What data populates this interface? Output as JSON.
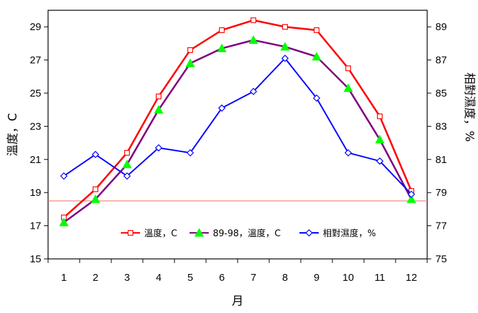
{
  "chart_data": {
    "type": "line",
    "categories": [
      "1",
      "2",
      "3",
      "4",
      "5",
      "6",
      "7",
      "8",
      "9",
      "10",
      "11",
      "12"
    ],
    "x": [
      1,
      2,
      3,
      4,
      5,
      6,
      7,
      8,
      9,
      10,
      11,
      12
    ],
    "xlabel": "月",
    "ylabel_left": "溫度，C",
    "ylabel_right": "相對濕度，%",
    "ylim_left": [
      15,
      30
    ],
    "ylim_right": [
      75,
      90
    ],
    "yticks_left": [
      15,
      17,
      19,
      21,
      23,
      25,
      27,
      29
    ],
    "yticks_right": [
      75,
      77,
      79,
      81,
      83,
      85,
      87,
      89
    ],
    "grid": false,
    "legend_position": "bottom-center",
    "reference_line": {
      "axis": "left",
      "value": 18.5,
      "color": "#f08070"
    },
    "series": [
      {
        "name": "溫度，C",
        "axis": "left",
        "color": "#ff0000",
        "marker": "square",
        "values": [
          17.5,
          19.2,
          21.4,
          24.8,
          27.6,
          28.8,
          29.4,
          29.0,
          28.8,
          26.5,
          23.6,
          19.1
        ]
      },
      {
        "name": "89-98，溫度，C",
        "axis": "left",
        "color": "#800080",
        "marker": "triangle",
        "marker_color": "#00ff00",
        "values": [
          17.2,
          18.6,
          20.7,
          24.0,
          26.8,
          27.7,
          28.2,
          27.8,
          27.2,
          25.3,
          22.2,
          18.6
        ]
      },
      {
        "name": "相對濕度，%",
        "axis": "right",
        "color": "#0000ff",
        "marker": "diamond",
        "values": [
          80.0,
          81.3,
          80.0,
          81.7,
          81.4,
          84.1,
          85.1,
          87.1,
          84.7,
          81.4,
          80.9,
          78.9
        ]
      }
    ]
  }
}
